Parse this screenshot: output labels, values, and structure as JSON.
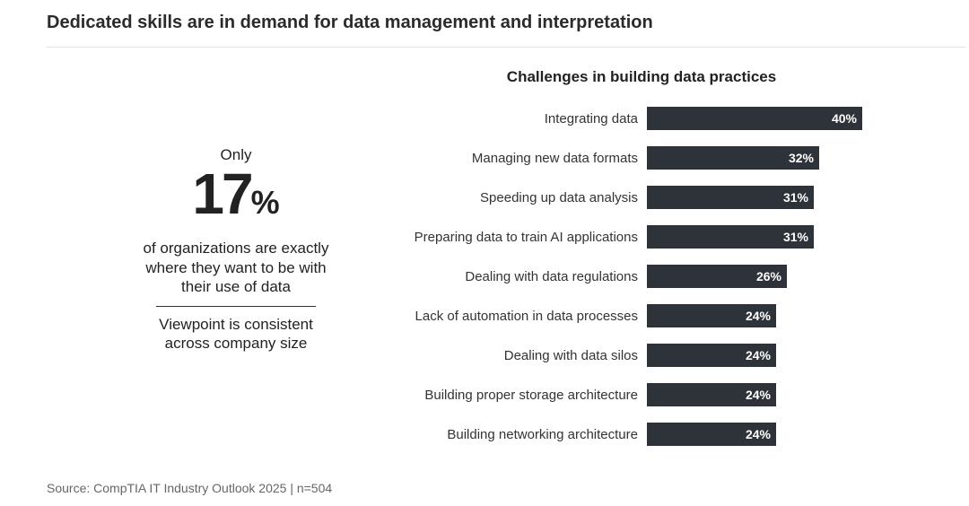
{
  "header": {
    "title": "Dedicated skills are in demand for data management and interpretation"
  },
  "stat_panel": {
    "prefix": "Only",
    "value": "17",
    "unit": "%",
    "description": "of organizations are exactly where they want to be with their use of data",
    "note": "Viewpoint is consistent across company size"
  },
  "chart_data": {
    "type": "bar",
    "orientation": "horizontal",
    "title": "Challenges in building data practices",
    "categories": [
      "Integrating data",
      "Managing new data formats",
      "Speeding up data analysis",
      "Preparing data to train AI applications",
      "Dealing with data regulations",
      "Lack of automation in data processes",
      "Dealing with data silos",
      "Building proper storage architecture",
      "Building networking architecture"
    ],
    "values": [
      40,
      32,
      31,
      31,
      26,
      24,
      24,
      24,
      24
    ],
    "value_labels": [
      "40%",
      "32%",
      "31%",
      "31%",
      "26%",
      "24%",
      "24%",
      "24%",
      "24%"
    ],
    "xlim": [
      0,
      40
    ],
    "grid": false,
    "bar_color": "#2d3338",
    "label_color": "#ffffff"
  },
  "footer": {
    "source": "Source: CompTIA IT Industry Outlook 2025 | n=504"
  }
}
